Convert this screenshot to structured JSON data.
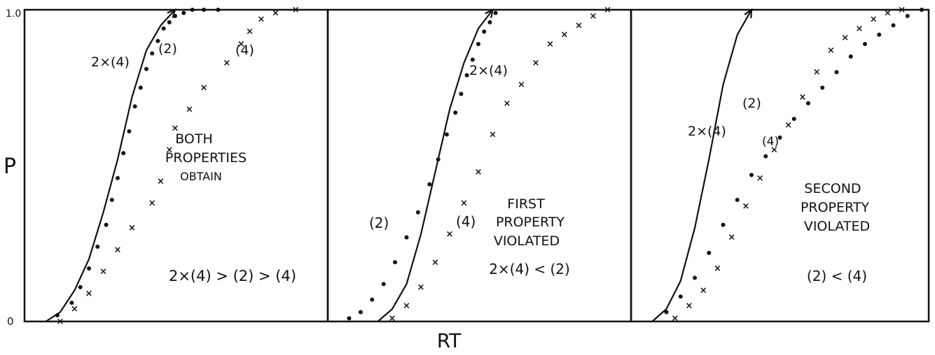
{
  "figure": {
    "y_axis_label": "P",
    "x_axis_label": "RT",
    "y_tick_top": "1.0",
    "y_tick_bottom": "0"
  },
  "chart_data": [
    {
      "type": "scatter",
      "title": "",
      "panel_text": [
        "BOTH",
        "PROPERTIES",
        "OBTAIN"
      ],
      "relation": "2×(4) > (2) > (4)",
      "xlabel": "",
      "ylabel": "",
      "xlim": [
        0,
        100
      ],
      "ylim": [
        0,
        1
      ],
      "series": [
        {
          "name": "2×(4)",
          "label": "2×(4)",
          "style": "line-arrow",
          "x": [
            5,
            10,
            15,
            20,
            25,
            30,
            35,
            40,
            45,
            50
          ],
          "y": [
            0.0,
            0.03,
            0.1,
            0.2,
            0.35,
            0.52,
            0.72,
            0.87,
            0.95,
            1.0
          ]
        },
        {
          "name": "(2)",
          "label": "(2)",
          "style": "dot",
          "x": [
            9,
            14,
            17,
            20,
            23,
            26,
            28,
            30,
            32,
            34,
            36,
            38,
            40,
            42,
            44,
            46,
            48,
            50,
            53,
            56,
            60,
            65
          ],
          "y": [
            0.02,
            0.06,
            0.11,
            0.17,
            0.24,
            0.31,
            0.39,
            0.46,
            0.54,
            0.61,
            0.69,
            0.75,
            0.81,
            0.86,
            0.9,
            0.94,
            0.96,
            0.98,
            0.99,
            1.0,
            1.0,
            1.0
          ]
        },
        {
          "name": "(4)",
          "label": "(4)",
          "style": "cross",
          "x": [
            10,
            15,
            20,
            25,
            30,
            35,
            42,
            45,
            48,
            50,
            55,
            60,
            68,
            73,
            76,
            80,
            85,
            92
          ],
          "y": [
            0.0,
            0.04,
            0.09,
            0.16,
            0.23,
            0.3,
            0.38,
            0.45,
            0.55,
            0.62,
            0.68,
            0.75,
            0.83,
            0.89,
            0.93,
            0.97,
            0.99,
            1.0
          ]
        }
      ]
    },
    {
      "type": "scatter",
      "title": "",
      "panel_text": [
        "FIRST",
        "PROPERTY",
        "VIOLATED"
      ],
      "relation": "2×(4) < (2)",
      "xlabel": "",
      "ylabel": "",
      "xlim": [
        0,
        100
      ],
      "ylim": [
        0,
        1
      ],
      "series": [
        {
          "name": "2×(4)",
          "label": "2×(4)",
          "style": "line-arrow",
          "x": [
            15,
            20,
            25,
            30,
            35,
            40,
            45,
            50,
            55
          ],
          "y": [
            0.0,
            0.04,
            0.12,
            0.28,
            0.48,
            0.68,
            0.83,
            0.94,
            1.0
          ]
        },
        {
          "name": "(2)",
          "label": "(2)",
          "style": "dot",
          "x": [
            5,
            9,
            13,
            17,
            21,
            25,
            29,
            33,
            36,
            39,
            42,
            44,
            46,
            48,
            50,
            52,
            54,
            56
          ],
          "y": [
            0.01,
            0.03,
            0.07,
            0.12,
            0.19,
            0.27,
            0.35,
            0.44,
            0.52,
            0.6,
            0.67,
            0.73,
            0.79,
            0.84,
            0.89,
            0.93,
            0.96,
            0.99
          ]
        },
        {
          "name": "(4)",
          "label": "(4)",
          "style": "cross",
          "x": [
            20,
            25,
            30,
            35,
            40,
            45,
            50,
            55,
            60,
            65,
            70,
            75,
            80,
            85,
            90,
            95
          ],
          "y": [
            0.01,
            0.05,
            0.11,
            0.19,
            0.28,
            0.38,
            0.48,
            0.6,
            0.7,
            0.76,
            0.83,
            0.89,
            0.92,
            0.95,
            0.98,
            1.0
          ]
        }
      ]
    },
    {
      "type": "scatter",
      "title": "",
      "panel_text": [
        "SECOND",
        "PROPERTY",
        "VIOLATED"
      ],
      "relation": "(2) < (4)",
      "xlabel": "",
      "ylabel": "",
      "xlim": [
        0,
        100
      ],
      "ylim": [
        0,
        1
      ],
      "series": [
        {
          "name": "2×(4)",
          "label": "2×(4)",
          "style": "line-arrow",
          "x": [
            5,
            10,
            15,
            20,
            25,
            30,
            35,
            40
          ],
          "y": [
            0.0,
            0.04,
            0.13,
            0.3,
            0.52,
            0.76,
            0.92,
            1.0
          ]
        },
        {
          "name": "(2)",
          "label": "(2)",
          "style": "dot",
          "x": [
            10,
            15,
            20,
            25,
            30,
            35,
            40,
            45,
            50,
            55,
            60,
            65,
            70,
            75,
            80,
            85,
            90,
            95,
            100
          ],
          "y": [
            0.03,
            0.08,
            0.14,
            0.22,
            0.31,
            0.39,
            0.47,
            0.53,
            0.59,
            0.65,
            0.7,
            0.75,
            0.8,
            0.85,
            0.89,
            0.92,
            0.95,
            0.98,
            1.0
          ]
        },
        {
          "name": "(4)",
          "label": "(4)",
          "style": "cross",
          "x": [
            13,
            18,
            23,
            28,
            33,
            38,
            43,
            48,
            53,
            58,
            63,
            68,
            73,
            78,
            83,
            88,
            93
          ],
          "y": [
            0.01,
            0.05,
            0.1,
            0.17,
            0.27,
            0.37,
            0.46,
            0.55,
            0.63,
            0.72,
            0.8,
            0.87,
            0.91,
            0.94,
            0.97,
            0.99,
            1.0
          ]
        }
      ]
    }
  ]
}
